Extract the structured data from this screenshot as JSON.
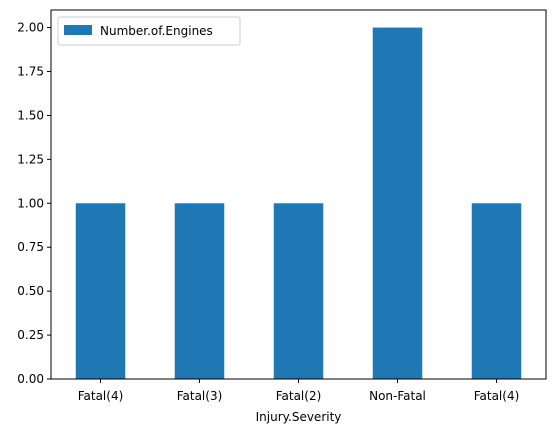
{
  "chart_data": {
    "type": "bar",
    "categories": [
      "Fatal(4)",
      "Fatal(3)",
      "Fatal(2)",
      "Non-Fatal",
      "Fatal(4)"
    ],
    "series": [
      {
        "name": "Number.of.Engines",
        "values": [
          1,
          1,
          1,
          2,
          1
        ],
        "color": "#1f77b4"
      }
    ],
    "xlabel": "Injury.Severity",
    "ylabel": "",
    "ylim": [
      0,
      2.1
    ],
    "yticks": [
      0.0,
      0.25,
      0.5,
      0.75,
      1.0,
      1.25,
      1.5,
      1.75,
      2.0
    ],
    "ytick_labels": [
      "0.00",
      "0.25",
      "0.50",
      "0.75",
      "1.00",
      "1.25",
      "1.50",
      "1.75",
      "2.00"
    ],
    "grid": false,
    "legend_position": "top-left"
  }
}
